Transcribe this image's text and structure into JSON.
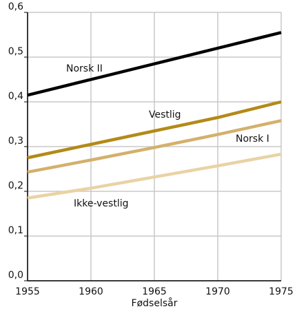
{
  "chart_data": {
    "type": "line",
    "x": [
      1955,
      1960,
      1965,
      1970,
      1975
    ],
    "series": [
      {
        "name": "Norsk II",
        "color": "#000000",
        "values": [
          0.415,
          0.45,
          0.485,
          0.52,
          0.555
        ]
      },
      {
        "name": "Vestlig",
        "color": "#b38a18",
        "values": [
          0.275,
          0.305,
          0.335,
          0.365,
          0.4
        ]
      },
      {
        "name": "Norsk I",
        "color": "#d3b06c",
        "values": [
          0.243,
          0.27,
          0.298,
          0.327,
          0.358
        ]
      },
      {
        "name": "Ikke-vestlig",
        "color": "#e9d3a4",
        "values": [
          0.185,
          0.207,
          0.232,
          0.257,
          0.283
        ]
      }
    ],
    "xlabel": "Fødselsår",
    "xlim": [
      1955,
      1975
    ],
    "xticks": [
      1955,
      1960,
      1965,
      1970,
      1975
    ],
    "ylim": [
      0,
      0.6
    ],
    "yticks": [
      {
        "value": 0,
        "label": "0,0"
      },
      {
        "value": 0.1,
        "label": "0,1"
      },
      {
        "value": 0.2,
        "label": "0,2"
      },
      {
        "value": 0.3,
        "label": "0,3"
      },
      {
        "value": 0.4,
        "label": "0,4"
      },
      {
        "value": 0.5,
        "label": "0,5"
      },
      {
        "value": 0.6,
        "label": "0,6"
      }
    ],
    "grid": true
  }
}
